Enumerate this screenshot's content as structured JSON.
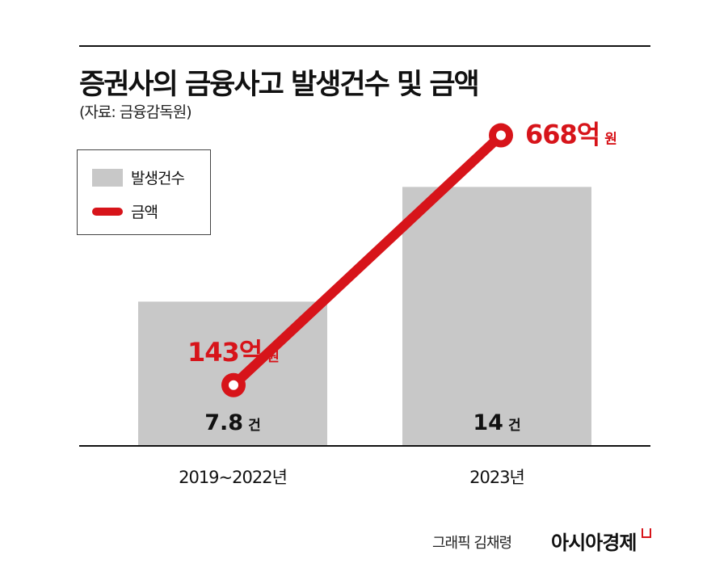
{
  "title": "증권사의 금융사고 발생건수 및 금액",
  "subtitle": "(자료: 금융감독원)",
  "credit": "그래픽 김채령",
  "logo": "아시아경제",
  "colors": {
    "bar": "#c8c8c8",
    "line": "#d7141a",
    "text": "#111111"
  },
  "chart_data": {
    "type": "bar+line",
    "categories": [
      "2019~2022년",
      "2023년"
    ],
    "series": [
      {
        "name": "발생건수",
        "type": "bar",
        "values": [
          7.8,
          14
        ],
        "labels": [
          "7.8",
          "14"
        ],
        "unit": "건"
      },
      {
        "name": "금액",
        "type": "line",
        "values": [
          143,
          668
        ],
        "labels": [
          "143억",
          "668억"
        ],
        "unit": "원"
      }
    ],
    "legend": {
      "placement": "top-left",
      "entries": [
        "발생건수",
        "금액"
      ]
    },
    "grid": false
  }
}
